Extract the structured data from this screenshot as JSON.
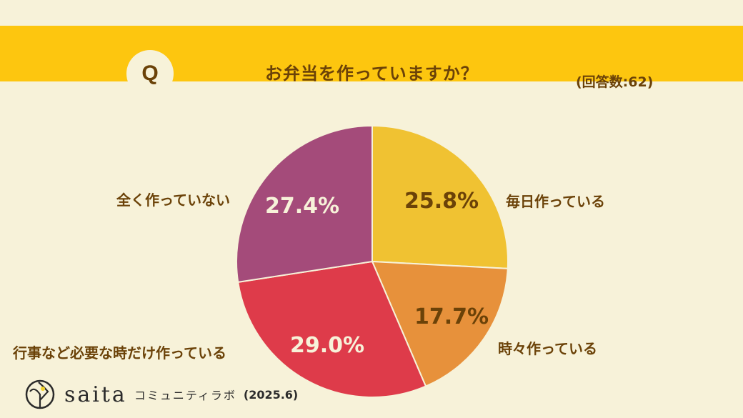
{
  "header": {
    "q_badge": "Q",
    "title": "お弁当を作っていますか？",
    "respondents": "(回答数:62)"
  },
  "footer": {
    "brand": "saita",
    "lab": "コミュニティラボ",
    "date": "(2025.6)"
  },
  "colors": {
    "background": "#f7f2d9",
    "banner": "#fdc60f",
    "text": "#6b4208",
    "slice_every_day": "#f0c232",
    "slice_sometimes": "#e7913b",
    "slice_events_only": "#de3b4a",
    "slice_never": "#a44b7a"
  },
  "chart_data": {
    "type": "pie",
    "title": "お弁当を作っていますか？",
    "subtitle": "(回答数:62)",
    "categories": [
      "毎日作っている",
      "時々作っている",
      "行事など必要な時だけ作っている",
      "全く作っていない"
    ],
    "values": [
      25.8,
      17.7,
      29.0,
      27.4
    ],
    "value_labels": [
      "25.8%",
      "17.7%",
      "29.0%",
      "27.4%"
    ],
    "colors": [
      "#f0c232",
      "#e7913b",
      "#de3b4a",
      "#a44b7a"
    ],
    "start_angle": "12 o'clock",
    "direction": "clockwise",
    "legend": "none (labels placed beside slices)"
  }
}
